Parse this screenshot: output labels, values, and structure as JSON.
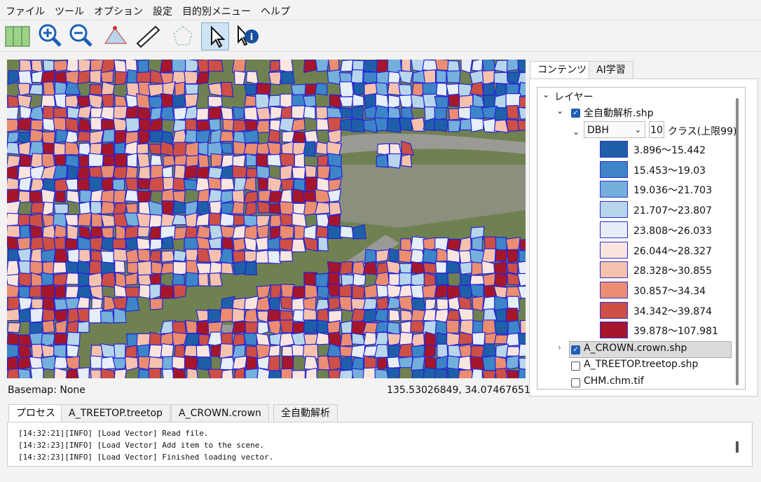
{
  "menu": [
    "ファイル",
    "ツール",
    "オプション",
    "設定",
    "目的別メニュー",
    "ヘルプ"
  ],
  "right_tabs": [
    "コンテンツ",
    "AI学習"
  ],
  "tree": {
    "root": "レイヤー",
    "field": "DBH",
    "class_count": 10,
    "class_label": "クラス(上限99)",
    "legend": [
      {
        "label": "3.896～15.442",
        "color": "#1f5fa8"
      },
      {
        "label": "15.453～19.03",
        "color": "#3d85c6"
      },
      {
        "label": "19.036～21.703",
        "color": "#74b0db"
      },
      {
        "label": "21.707～23.807",
        "color": "#b7d6ec"
      },
      {
        "label": "23.808～26.033",
        "color": "#e6eef8"
      },
      {
        "label": "26.044～28.327",
        "color": "#fbe6df"
      },
      {
        "label": "28.328～30.855",
        "color": "#f6c2ad"
      },
      {
        "label": "30.857～34.34",
        "color": "#eb8d70"
      },
      {
        "label": "34.342～39.874",
        "color": "#cd4f45"
      },
      {
        "label": "39.878～107.981",
        "color": "#a5162b"
      }
    ],
    "layers": [
      {
        "name": "全自動解析.shp",
        "checked": true
      },
      {
        "name": "A_CROWN.crown.shp",
        "checked": true
      },
      {
        "name": "A_TREETOP.treetop.shp",
        "checked": false
      },
      {
        "name": "CHM.chm.tif",
        "checked": false
      }
    ]
  },
  "status": {
    "basemap": "Basemap: None",
    "coords": "135.53026849, 34.07467651"
  },
  "bottom_tabs": [
    "プロセス",
    "A_TREETOP.treetop",
    "A_CROWN.crown",
    "全自動解析"
  ],
  "log": [
    "[14:32:21][INFO] [Load Vector] Read file.",
    "[14:32:23][INFO] [Load Vector] Add item to the scene.",
    "[14:32:23][INFO] [Load Vector] Finished loading vector."
  ]
}
